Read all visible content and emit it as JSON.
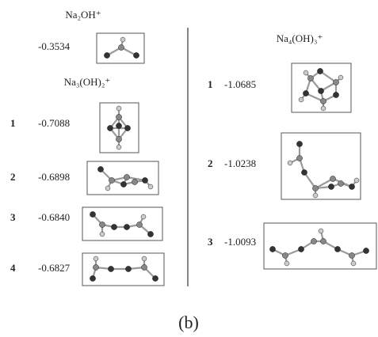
{
  "figure": {
    "single": {
      "title": "Na₂OH⁺",
      "energy": "-0.3534"
    },
    "left": {
      "title": "Na₃(OH)₂⁺",
      "isomers": [
        {
          "rank": "1",
          "energy": "-0.7088"
        },
        {
          "rank": "2",
          "energy": "-0.6898"
        },
        {
          "rank": "3",
          "energy": "-0.6840"
        },
        {
          "rank": "4",
          "energy": "-0.6827"
        }
      ]
    },
    "right": {
      "title": "Na₄(OH)₃⁺",
      "isomers": [
        {
          "rank": "1",
          "energy": "-1.0685"
        },
        {
          "rank": "2",
          "energy": "-1.0238"
        },
        {
          "rank": "3",
          "energy": "-1.0093"
        }
      ]
    },
    "caption": "(b)"
  }
}
